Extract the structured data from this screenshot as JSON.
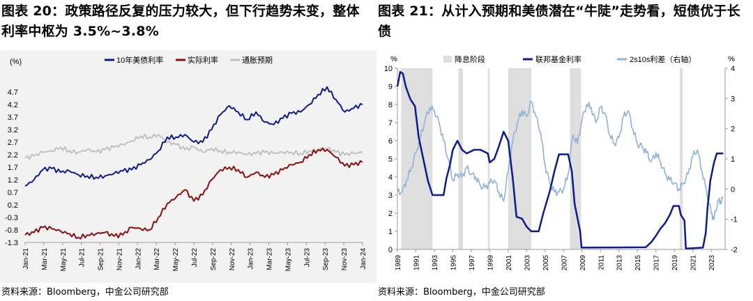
{
  "charts": [
    {
      "title": "图表 20：政策路径反复的压力较大，但下行趋势未变，整体利率中枢为 3.5%~3.8%",
      "source": "资料来源：Bloomberg，中金公司研究部",
      "unit": "(%)"
    },
    {
      "title": "图表 21：从计入预期和美债潜在“牛陡”走势看，短债优于长债",
      "source": "资料来源：Bloomberg，中金公司研究部",
      "left_unit": "%",
      "right_unit": "%"
    }
  ],
  "colors": {
    "navy": "#0d1a8a",
    "darkred": "#8b0d0d",
    "gray": "#c0c0c0",
    "lightblue": "#8fb2d8",
    "shade": "#dedede"
  },
  "chart_data": [
    {
      "type": "line",
      "ylim": [
        -1.3,
        5.2
      ],
      "yticks": [
        -1.3,
        -0.8,
        -0.3,
        0.2,
        0.7,
        1.2,
        1.7,
        2.2,
        2.7,
        3.2,
        3.7,
        4.2,
        4.7
      ],
      "xticks": [
        "Jan-21",
        "Mar-21",
        "May-21",
        "Jul-21",
        "Sep-21",
        "Nov-21",
        "Jan-22",
        "Mar-22",
        "May-22",
        "Jul-22",
        "Sep-22",
        "Nov-22",
        "Jan-23",
        "Mar-23",
        "May-23",
        "Jul-23",
        "Sep-23",
        "Nov-23",
        "Jan-24"
      ],
      "legend_position": "top",
      "series": [
        {
          "name": "10年美债利率",
          "color": "#0d1a8a",
          "values": [
            0.95,
            1.2,
            1.6,
            1.65,
            1.5,
            1.55,
            1.4,
            1.35,
            1.3,
            1.35,
            1.45,
            1.55,
            1.6,
            1.8,
            2.0,
            2.35,
            2.9,
            2.9,
            3.0,
            2.7,
            2.7,
            3.2,
            3.8,
            4.15,
            3.9,
            3.6,
            3.9,
            3.5,
            3.4,
            3.65,
            3.85,
            3.9,
            4.2,
            4.6,
            4.9,
            4.4,
            3.9,
            4.05,
            4.2
          ]
        },
        {
          "name": "实际利率",
          "color": "#8b0d0d",
          "values": [
            -1.0,
            -0.9,
            -0.7,
            -0.75,
            -0.85,
            -0.95,
            -1.1,
            -1.0,
            -0.95,
            -0.9,
            -1.05,
            -1.0,
            -0.7,
            -0.75,
            -0.8,
            -0.3,
            0.25,
            0.5,
            0.8,
            0.35,
            0.6,
            1.2,
            1.6,
            1.7,
            1.6,
            1.3,
            1.5,
            1.3,
            1.4,
            1.6,
            1.8,
            1.9,
            2.2,
            2.4,
            2.4,
            2.1,
            1.75,
            1.8,
            1.9
          ]
        },
        {
          "name": "通胀预期",
          "color": "#c0c0c0",
          "values": [
            2.05,
            2.15,
            2.3,
            2.35,
            2.5,
            2.35,
            2.3,
            2.4,
            2.3,
            2.4,
            2.5,
            2.6,
            2.75,
            2.95,
            2.9,
            3.0,
            2.7,
            2.6,
            2.4,
            2.5,
            2.3,
            2.45,
            2.35,
            2.3,
            2.3,
            2.2,
            2.25,
            2.3,
            2.25,
            2.3,
            2.3,
            2.25,
            2.35,
            2.4,
            2.45,
            2.3,
            2.2,
            2.25,
            2.3
          ]
        }
      ]
    },
    {
      "type": "line",
      "ylim": [
        0,
        10
      ],
      "yticks": [
        0,
        1,
        2,
        3,
        4,
        5,
        6,
        7,
        8,
        9,
        10
      ],
      "y2lim": [
        -2,
        4
      ],
      "y2ticks": [
        -2,
        -1,
        0,
        1,
        2,
        3,
        4
      ],
      "xlim": [
        1989,
        2024.5
      ],
      "xticks": [
        "1989",
        "1991",
        "1993",
        "1995",
        "1997",
        "1999",
        "2001",
        "2003",
        "2005",
        "2007",
        "2009",
        "2011",
        "2013",
        "2015",
        "2017",
        "2019",
        "2021",
        "2023"
      ],
      "legend_position": "top",
      "shaded_periods": {
        "name": "降息阶段",
        "ranges": [
          [
            1989.4,
            1992.8
          ],
          [
            1995.6,
            1996.1
          ],
          [
            1998.8,
            1999.0
          ],
          [
            2001.0,
            2003.5
          ],
          [
            2007.7,
            2008.9
          ],
          [
            2019.6,
            2019.9
          ]
        ]
      },
      "series": [
        {
          "name": "联邦基金利率",
          "color": "#0d1a8a",
          "axis": "left",
          "points": [
            [
              1989.0,
              9.0
            ],
            [
              1989.3,
              9.8
            ],
            [
              1989.6,
              9.7
            ],
            [
              1989.9,
              9.0
            ],
            [
              1990.4,
              8.3
            ],
            [
              1990.9,
              7.9
            ],
            [
              1991.3,
              6.2
            ],
            [
              1991.8,
              5.0
            ],
            [
              1992.3,
              3.8
            ],
            [
              1992.8,
              3.0
            ],
            [
              1993.5,
              3.0
            ],
            [
              1994.0,
              3.0
            ],
            [
              1994.3,
              3.9
            ],
            [
              1994.7,
              4.7
            ],
            [
              1995.0,
              5.5
            ],
            [
              1995.5,
              6.0
            ],
            [
              1996.0,
              5.5
            ],
            [
              1996.5,
              5.3
            ],
            [
              1997.3,
              5.5
            ],
            [
              1998.0,
              5.5
            ],
            [
              1998.8,
              5.3
            ],
            [
              1999.0,
              4.8
            ],
            [
              1999.5,
              5.0
            ],
            [
              2000.0,
              5.7
            ],
            [
              2000.5,
              6.5
            ],
            [
              2001.0,
              6.0
            ],
            [
              2001.5,
              3.9
            ],
            [
              2001.9,
              1.8
            ],
            [
              2002.5,
              1.7
            ],
            [
              2003.0,
              1.25
            ],
            [
              2003.5,
              1.0
            ],
            [
              2004.3,
              1.0
            ],
            [
              2004.8,
              2.0
            ],
            [
              2005.5,
              3.2
            ],
            [
              2006.0,
              4.3
            ],
            [
              2006.5,
              5.25
            ],
            [
              2007.5,
              5.25
            ],
            [
              2007.9,
              4.3
            ],
            [
              2008.2,
              2.5
            ],
            [
              2008.8,
              1.0
            ],
            [
              2008.95,
              0.1
            ],
            [
              2015.9,
              0.12
            ],
            [
              2016.5,
              0.4
            ],
            [
              2017.0,
              0.75
            ],
            [
              2017.5,
              1.15
            ],
            [
              2018.0,
              1.45
            ],
            [
              2018.5,
              1.9
            ],
            [
              2018.9,
              2.4
            ],
            [
              2019.5,
              2.4
            ],
            [
              2019.7,
              1.9
            ],
            [
              2020.1,
              1.6
            ],
            [
              2020.25,
              0.05
            ],
            [
              2022.1,
              0.1
            ],
            [
              2022.4,
              0.9
            ],
            [
              2022.6,
              2.3
            ],
            [
              2022.9,
              3.8
            ],
            [
              2023.3,
              4.8
            ],
            [
              2023.6,
              5.3
            ],
            [
              2024.3,
              5.3
            ]
          ]
        },
        {
          "name": "2s10s利差（右轴）",
          "color": "#8fb2d8",
          "axis": "right",
          "points": [
            [
              1989.0,
              -0.1
            ],
            [
              1989.5,
              -0.1
            ],
            [
              1990.0,
              0.3
            ],
            [
              1990.5,
              0.7
            ],
            [
              1991.0,
              1.2
            ],
            [
              1991.5,
              1.7
            ],
            [
              1992.0,
              2.3
            ],
            [
              1992.5,
              2.7
            ],
            [
              1993.0,
              2.6
            ],
            [
              1993.5,
              2.2
            ],
            [
              1994.0,
              1.6
            ],
            [
              1994.5,
              1.0
            ],
            [
              1995.0,
              0.3
            ],
            [
              1995.5,
              0.5
            ],
            [
              1996.0,
              0.4
            ],
            [
              1996.5,
              0.7
            ],
            [
              1997.0,
              0.5
            ],
            [
              1997.5,
              0.4
            ],
            [
              1998.0,
              0.1
            ],
            [
              1998.5,
              0.05
            ],
            [
              1999.0,
              0.2
            ],
            [
              1999.5,
              0.3
            ],
            [
              2000.0,
              -0.1
            ],
            [
              2000.5,
              -0.4
            ],
            [
              2001.0,
              0.6
            ],
            [
              2001.5,
              1.6
            ],
            [
              2002.0,
              2.2
            ],
            [
              2002.5,
              2.6
            ],
            [
              2003.0,
              2.4
            ],
            [
              2003.5,
              2.9
            ],
            [
              2004.0,
              2.4
            ],
            [
              2004.5,
              1.9
            ],
            [
              2005.0,
              0.8
            ],
            [
              2005.5,
              0.2
            ],
            [
              2006.0,
              -0.1
            ],
            [
              2006.5,
              -0.1
            ],
            [
              2007.0,
              0.0
            ],
            [
              2007.5,
              0.5
            ],
            [
              2008.0,
              1.8
            ],
            [
              2008.5,
              1.5
            ],
            [
              2009.0,
              2.3
            ],
            [
              2009.5,
              2.8
            ],
            [
              2010.0,
              2.7
            ],
            [
              2010.5,
              2.2
            ],
            [
              2011.0,
              2.7
            ],
            [
              2011.5,
              2.5
            ],
            [
              2012.0,
              1.8
            ],
            [
              2012.5,
              1.5
            ],
            [
              2013.0,
              1.7
            ],
            [
              2013.5,
              2.4
            ],
            [
              2014.0,
              2.6
            ],
            [
              2014.5,
              2.0
            ],
            [
              2015.0,
              1.5
            ],
            [
              2015.5,
              1.4
            ],
            [
              2016.0,
              1.2
            ],
            [
              2016.5,
              0.9
            ],
            [
              2017.0,
              1.2
            ],
            [
              2017.5,
              0.9
            ],
            [
              2018.0,
              0.5
            ],
            [
              2018.5,
              0.3
            ],
            [
              2019.0,
              0.2
            ],
            [
              2019.5,
              0.0
            ],
            [
              2020.0,
              0.2
            ],
            [
              2020.5,
              0.5
            ],
            [
              2021.0,
              1.1
            ],
            [
              2021.5,
              1.3
            ],
            [
              2022.0,
              0.6
            ],
            [
              2022.5,
              -0.1
            ],
            [
              2023.0,
              -0.8
            ],
            [
              2023.3,
              -1.0
            ],
            [
              2023.7,
              -0.4
            ],
            [
              2024.0,
              -0.4
            ],
            [
              2024.3,
              -0.3
            ]
          ]
        }
      ]
    }
  ]
}
